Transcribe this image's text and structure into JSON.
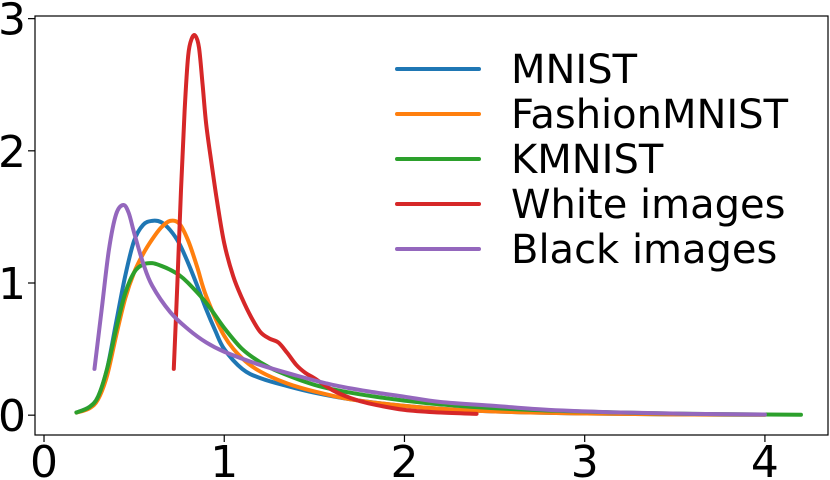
{
  "chart_data": {
    "type": "line",
    "xlim": [
      -0.05,
      4.35
    ],
    "ylim": [
      -0.15,
      3.02
    ],
    "xticks": [
      0,
      1,
      2,
      3,
      4
    ],
    "yticks": [
      0,
      1,
      2,
      3
    ],
    "grid": false,
    "legend_position": "top-right",
    "series": [
      {
        "name": "MNIST",
        "color": "#1f77b4",
        "x": [
          0.18,
          0.25,
          0.3,
          0.35,
          0.4,
          0.45,
          0.5,
          0.55,
          0.6,
          0.65,
          0.7,
          0.75,
          0.8,
          0.85,
          0.9,
          0.95,
          1.0,
          1.1,
          1.2,
          1.35,
          1.5,
          1.7,
          2.0,
          2.3,
          2.7,
          3.2,
          3.6,
          4.0
        ],
        "y": [
          0.02,
          0.06,
          0.14,
          0.35,
          0.7,
          1.05,
          1.32,
          1.44,
          1.47,
          1.46,
          1.4,
          1.3,
          1.15,
          0.98,
          0.8,
          0.64,
          0.5,
          0.35,
          0.28,
          0.22,
          0.17,
          0.12,
          0.07,
          0.04,
          0.02,
          0.01,
          0.005,
          0.003
        ]
      },
      {
        "name": "FashionMNIST",
        "color": "#ff7f0e",
        "x": [
          0.18,
          0.25,
          0.3,
          0.35,
          0.4,
          0.45,
          0.5,
          0.55,
          0.6,
          0.65,
          0.7,
          0.75,
          0.8,
          0.85,
          0.9,
          1.0,
          1.1,
          1.2,
          1.35,
          1.5,
          1.7,
          2.0,
          2.3,
          2.7,
          3.2,
          3.6,
          4.0
        ],
        "y": [
          0.02,
          0.05,
          0.12,
          0.3,
          0.6,
          0.88,
          1.08,
          1.22,
          1.33,
          1.42,
          1.47,
          1.45,
          1.32,
          1.12,
          0.9,
          0.6,
          0.43,
          0.33,
          0.24,
          0.18,
          0.12,
          0.07,
          0.04,
          0.02,
          0.01,
          0.005,
          0.003
        ]
      },
      {
        "name": "KMNIST",
        "color": "#2ca02c",
        "x": [
          0.18,
          0.25,
          0.3,
          0.35,
          0.4,
          0.45,
          0.5,
          0.55,
          0.6,
          0.65,
          0.7,
          0.75,
          0.8,
          0.9,
          1.0,
          1.1,
          1.2,
          1.3,
          1.5,
          1.7,
          2.0,
          2.3,
          2.7,
          3.2,
          3.6,
          4.0,
          4.2
        ],
        "y": [
          0.02,
          0.06,
          0.14,
          0.35,
          0.65,
          0.92,
          1.08,
          1.14,
          1.15,
          1.13,
          1.1,
          1.06,
          1.0,
          0.85,
          0.66,
          0.5,
          0.4,
          0.33,
          0.23,
          0.17,
          0.11,
          0.07,
          0.04,
          0.02,
          0.01,
          0.005,
          0.003
        ]
      },
      {
        "name": "White images",
        "color": "#d62728",
        "x": [
          0.72,
          0.74,
          0.76,
          0.78,
          0.8,
          0.82,
          0.84,
          0.86,
          0.88,
          0.9,
          0.93,
          0.96,
          1.0,
          1.05,
          1.1,
          1.15,
          1.2,
          1.25,
          1.3,
          1.35,
          1.4,
          1.45,
          1.5,
          1.6,
          1.7,
          1.8,
          2.0,
          2.2,
          2.4
        ],
        "y": [
          0.35,
          1.0,
          1.7,
          2.3,
          2.72,
          2.85,
          2.87,
          2.78,
          2.5,
          2.2,
          1.9,
          1.62,
          1.3,
          1.05,
          0.88,
          0.74,
          0.63,
          0.58,
          0.55,
          0.47,
          0.38,
          0.32,
          0.28,
          0.19,
          0.13,
          0.09,
          0.04,
          0.02,
          0.01
        ]
      },
      {
        "name": "Black images",
        "color": "#9467bd",
        "x": [
          0.28,
          0.32,
          0.36,
          0.4,
          0.44,
          0.47,
          0.5,
          0.55,
          0.6,
          0.7,
          0.8,
          0.9,
          1.0,
          1.2,
          1.4,
          1.6,
          1.8,
          2.0,
          2.2,
          2.5,
          2.8,
          3.2,
          3.6,
          4.0
        ],
        "y": [
          0.35,
          0.8,
          1.25,
          1.52,
          1.59,
          1.53,
          1.38,
          1.15,
          0.98,
          0.78,
          0.65,
          0.55,
          0.48,
          0.38,
          0.3,
          0.23,
          0.18,
          0.14,
          0.1,
          0.07,
          0.04,
          0.02,
          0.01,
          0.005
        ]
      }
    ]
  }
}
